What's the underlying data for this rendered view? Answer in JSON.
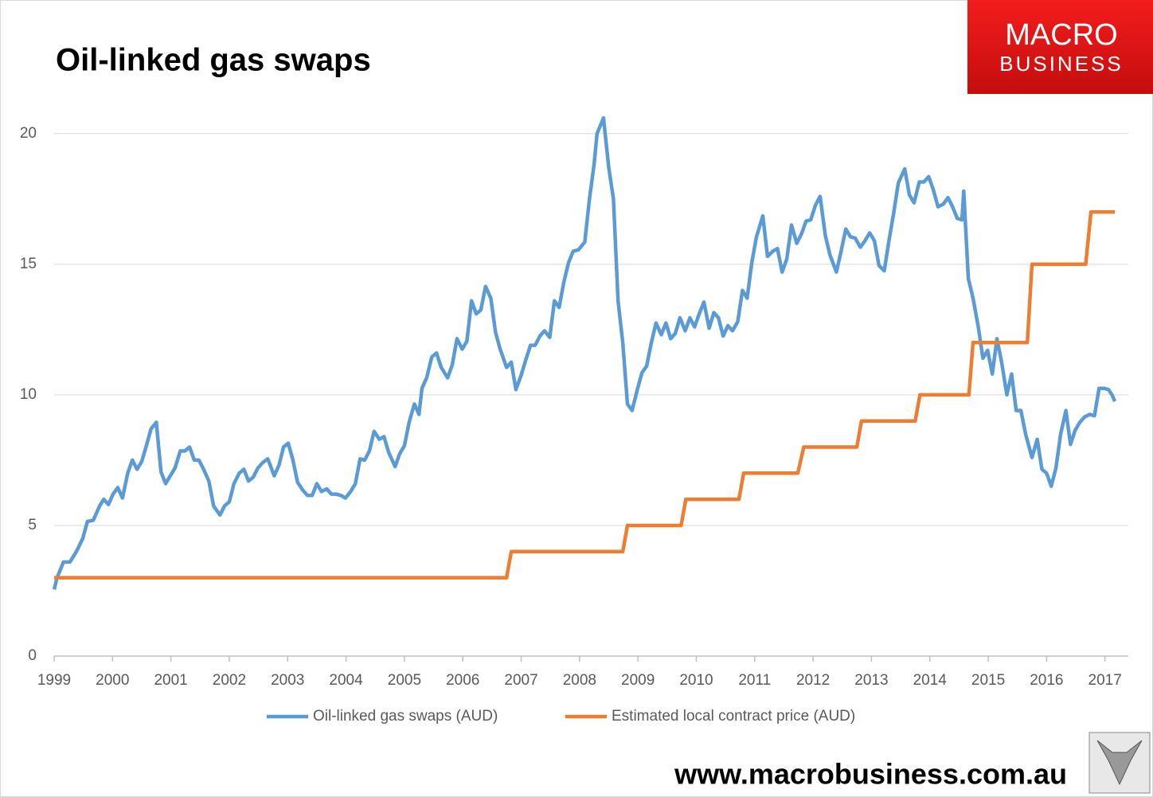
{
  "logo_lines": [
    "MACRO",
    "BUSINESS"
  ],
  "footer": "www.macrobusiness.com.au",
  "chart_data": {
    "type": "line",
    "title": "Oil-linked gas swaps",
    "xlim": [
      1999,
      2017.4
    ],
    "xticks": [
      1999,
      2000,
      2001,
      2002,
      2003,
      2004,
      2005,
      2006,
      2007,
      2008,
      2009,
      2010,
      2011,
      2012,
      2013,
      2014,
      2015,
      2016,
      2017
    ],
    "ylim": [
      0,
      21
    ],
    "yticks": [
      0,
      5,
      10,
      15,
      20
    ],
    "grid": true,
    "legend": "bottom",
    "series": [
      {
        "name": "Oil-linked gas swaps (AUD)",
        "color": "#5b9bd5",
        "x": [
          1999.0,
          1999.05,
          1999.16,
          1999.27,
          1999.38,
          1999.49,
          1999.57,
          1999.67,
          1999.78,
          1999.85,
          1999.93,
          2000.01,
          2000.09,
          2000.17,
          2000.26,
          2000.34,
          2000.42,
          2000.5,
          2000.58,
          2000.66,
          2000.75,
          2000.83,
          2000.91,
          2000.99,
          2001.07,
          2001.16,
          2001.24,
          2001.32,
          2001.4,
          2001.48,
          2001.56,
          2001.65,
          2001.73,
          2001.84,
          2001.92,
          2002.0,
          2002.08,
          2002.17,
          2002.25,
          2002.33,
          2002.41,
          2002.49,
          2002.57,
          2002.66,
          2002.77,
          2002.85,
          2002.93,
          2003.01,
          2003.09,
          2003.17,
          2003.26,
          2003.34,
          2003.42,
          2003.5,
          2003.58,
          2003.67,
          2003.75,
          2003.83,
          2003.91,
          2003.99,
          2004.08,
          2004.16,
          2004.24,
          2004.32,
          2004.4,
          2004.48,
          2004.57,
          2004.65,
          2004.73,
          2004.84,
          2004.92,
          2005.0,
          2005.08,
          2005.17,
          2005.25,
          2005.3,
          2005.38,
          2005.47,
          2005.55,
          2005.63,
          2005.74,
          2005.82,
          2005.9,
          2005.99,
          2006.07,
          2006.15,
          2006.23,
          2006.31,
          2006.39,
          2006.48,
          2006.56,
          2006.64,
          2006.75,
          2006.83,
          2006.91,
          2007.0,
          2007.08,
          2007.16,
          2007.24,
          2007.32,
          2007.4,
          2007.49,
          2007.57,
          2007.65,
          2007.73,
          2007.81,
          2007.89,
          2007.98,
          2008.09,
          2008.17,
          2008.25,
          2008.3,
          2008.41,
          2008.5,
          2008.58,
          2008.66,
          2008.74,
          2008.82,
          2008.9,
          2008.99,
          2009.07,
          2009.15,
          2009.23,
          2009.31,
          2009.4,
          2009.48,
          2009.56,
          2009.64,
          2009.72,
          2009.81,
          2009.89,
          2009.97,
          2010.05,
          2010.13,
          2010.22,
          2010.3,
          2010.38,
          2010.46,
          2010.54,
          2010.62,
          2010.71,
          2010.79,
          2010.87,
          2010.95,
          2011.03,
          2011.14,
          2011.22,
          2011.31,
          2011.39,
          2011.47,
          2011.55,
          2011.63,
          2011.72,
          2011.8,
          2011.88,
          2011.96,
          2012.04,
          2012.12,
          2012.21,
          2012.29,
          2012.4,
          2012.48,
          2012.56,
          2012.64,
          2012.72,
          2012.81,
          2012.89,
          2012.97,
          2013.05,
          2013.13,
          2013.22,
          2013.3,
          2013.38,
          2013.46,
          2013.57,
          2013.65,
          2013.73,
          2013.82,
          2013.9,
          2013.98,
          2014.06,
          2014.14,
          2014.23,
          2014.31,
          2014.39,
          2014.47,
          2014.55,
          2014.58,
          2014.66,
          2014.74,
          2014.83,
          2014.91,
          2014.99,
          2015.07,
          2015.15,
          2015.23,
          2015.32,
          2015.4,
          2015.48,
          2015.56,
          2015.64,
          2015.75,
          2015.84,
          2015.92,
          2016.0,
          2016.08,
          2016.16,
          2016.24,
          2016.33,
          2016.41,
          2016.49,
          2016.57,
          2016.65,
          2016.74,
          2016.82,
          2016.9,
          2016.98,
          2017.06,
          2017.12,
          2017.17
        ],
        "values": [
          2.55,
          3.0,
          3.6,
          3.6,
          4.0,
          4.5,
          5.15,
          5.2,
          5.75,
          6.0,
          5.8,
          6.2,
          6.45,
          6.05,
          7.0,
          7.5,
          7.15,
          7.45,
          8.05,
          8.7,
          8.95,
          7.05,
          6.6,
          6.9,
          7.2,
          7.85,
          7.85,
          8.0,
          7.5,
          7.5,
          7.15,
          6.7,
          5.75,
          5.4,
          5.75,
          5.9,
          6.6,
          7.0,
          7.15,
          6.7,
          6.85,
          7.2,
          7.4,
          7.55,
          6.9,
          7.3,
          8.0,
          8.15,
          7.5,
          6.65,
          6.35,
          6.15,
          6.15,
          6.6,
          6.3,
          6.4,
          6.2,
          6.2,
          6.15,
          6.05,
          6.3,
          6.6,
          7.55,
          7.5,
          7.85,
          8.6,
          8.3,
          8.4,
          7.8,
          7.25,
          7.75,
          8.05,
          8.95,
          9.65,
          9.25,
          10.25,
          10.65,
          11.45,
          11.6,
          11.05,
          10.65,
          11.15,
          12.15,
          11.75,
          12.05,
          13.6,
          13.1,
          13.25,
          14.15,
          13.7,
          12.4,
          11.75,
          11.05,
          11.25,
          10.2,
          10.75,
          11.35,
          11.9,
          11.9,
          12.25,
          12.45,
          12.2,
          13.6,
          13.35,
          14.3,
          15.05,
          15.5,
          15.55,
          15.85,
          17.5,
          18.85,
          20.0,
          20.6,
          18.7,
          17.5,
          13.6,
          12.0,
          9.65,
          9.4,
          10.2,
          10.85,
          11.1,
          12.0,
          12.75,
          12.3,
          12.75,
          12.15,
          12.35,
          12.95,
          12.45,
          12.95,
          12.6,
          13.1,
          13.55,
          12.55,
          13.15,
          12.95,
          12.25,
          12.65,
          12.45,
          12.8,
          14.0,
          13.7,
          15.05,
          16.05,
          16.85,
          15.3,
          15.5,
          15.6,
          14.7,
          15.2,
          16.5,
          15.8,
          16.15,
          16.65,
          16.7,
          17.25,
          17.6,
          16.1,
          15.35,
          14.7,
          15.5,
          16.35,
          16.05,
          16.0,
          15.65,
          15.9,
          16.2,
          15.9,
          14.95,
          14.75,
          15.9,
          16.95,
          18.1,
          18.65,
          17.65,
          17.35,
          18.15,
          18.15,
          18.35,
          17.85,
          17.2,
          17.3,
          17.55,
          17.2,
          16.75,
          16.7,
          17.8,
          14.45,
          13.7,
          12.6,
          11.4,
          11.7,
          10.8,
          12.15,
          11.25,
          10.0,
          10.8,
          9.4,
          9.4,
          8.5,
          7.6,
          8.3,
          7.15,
          7.0,
          6.5,
          7.2,
          8.5,
          9.4,
          8.1,
          8.65,
          8.95,
          9.15,
          9.25,
          9.2,
          10.25,
          10.25,
          10.2,
          10.0,
          9.75
        ]
      },
      {
        "name": "Estimated local contract price (AUD)",
        "color": "#ed7d31",
        "x": [
          1999.0,
          2006.75,
          2006.83,
          2008.74,
          2008.82,
          2009.74,
          2009.82,
          2010.73,
          2010.81,
          2011.74,
          2011.84,
          2012.75,
          2012.83,
          2013.75,
          2013.83,
          2014.67,
          2014.74,
          2015.67,
          2015.75,
          2016.67,
          2016.76,
          2017.17
        ],
        "values": [
          3,
          3,
          4,
          4,
          5,
          5,
          6,
          6,
          7,
          7,
          8,
          8,
          9,
          9,
          10,
          10,
          12,
          12,
          15,
          15,
          17,
          17
        ]
      }
    ]
  }
}
